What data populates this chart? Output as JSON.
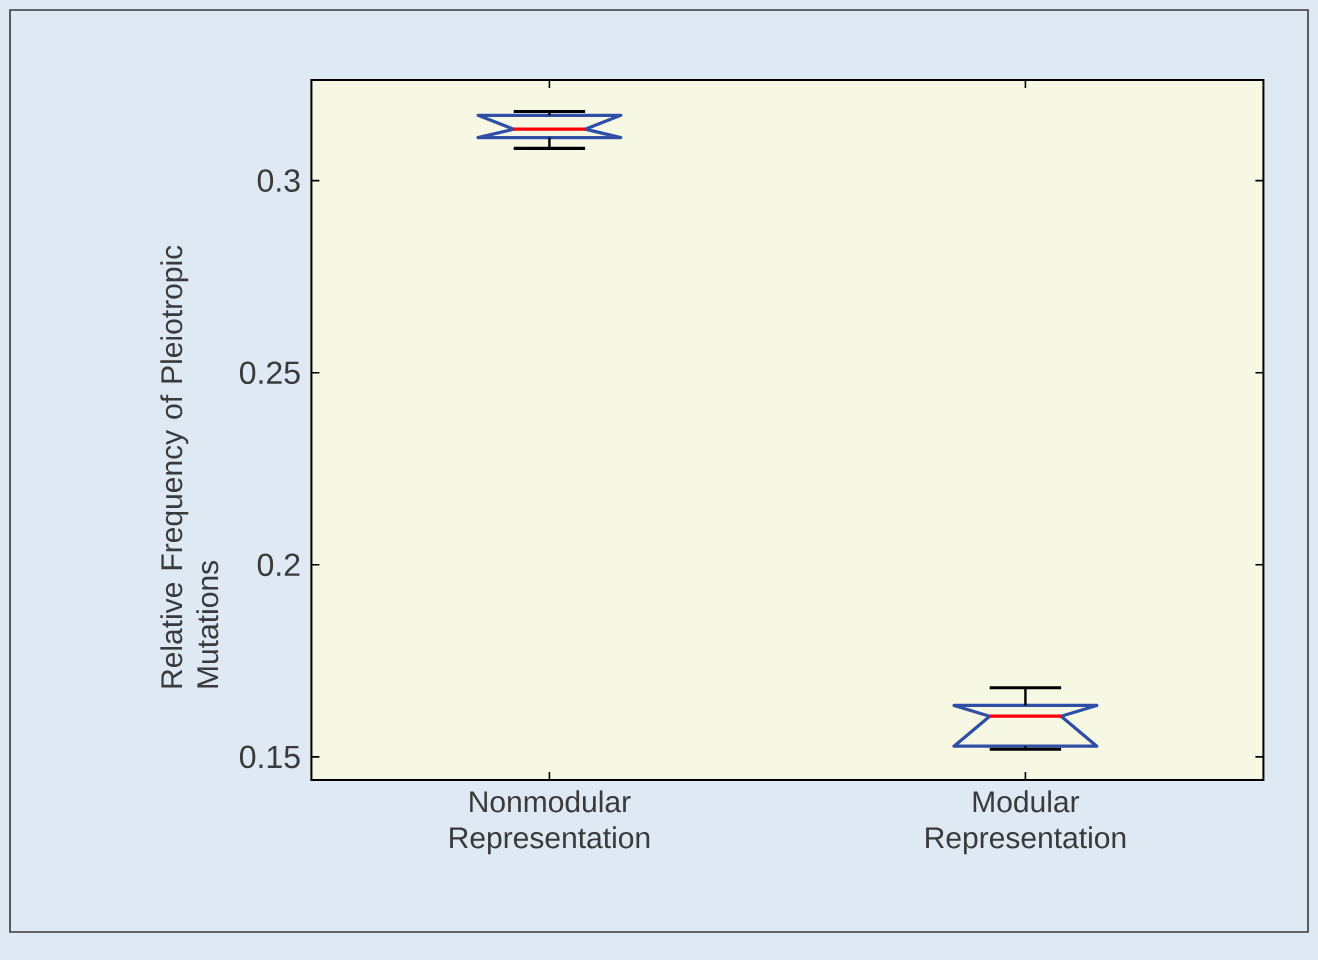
{
  "chart_data": {
    "type": "box",
    "ylabel": "Relative Frequency of Pleiotropic Mutations",
    "categories": [
      "Nonmodular Representation",
      "Modular Representation"
    ],
    "boxes": [
      {
        "low": 0.3084,
        "q1": 0.3112,
        "median": 0.3134,
        "q3": 0.317,
        "high": 0.318
      },
      {
        "low": 0.152,
        "q1": 0.1528,
        "median": 0.1606,
        "q3": 0.1634,
        "high": 0.168
      }
    ],
    "color": "#2f4fa6",
    "ylim": [
      0.144,
      0.3262
    ],
    "yticks": [
      0.15,
      0.2,
      0.25,
      0.3
    ]
  }
}
